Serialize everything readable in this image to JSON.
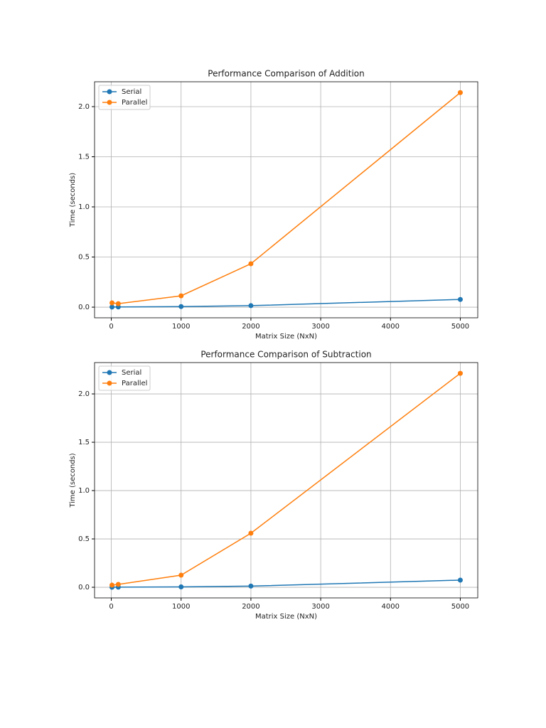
{
  "chart_data": [
    {
      "type": "line",
      "title": "Performance Comparison of Addition",
      "x_label": "Matrix Size (NxN)",
      "y_label": "Time (seconds)",
      "x": [
        10,
        100,
        1000,
        2000,
        5000
      ],
      "series": [
        {
          "name": "Serial",
          "color": "#1f77b4",
          "values": [
            0.001,
            0.002,
            0.006,
            0.015,
            0.077
          ]
        },
        {
          "name": "Parallel",
          "color": "#ff7f0e",
          "values": [
            0.043,
            0.035,
            0.113,
            0.433,
            2.14
          ]
        }
      ],
      "xlim": [
        -240,
        5250
      ],
      "ylim": [
        -0.106,
        2.248
      ],
      "xticks": [
        0,
        1000,
        2000,
        3000,
        4000,
        5000
      ],
      "yticks": [
        {
          "value": 0,
          "label": "0.0"
        },
        {
          "value": 0.5,
          "label": "0.5"
        },
        {
          "value": 1,
          "label": "1.0"
        },
        {
          "value": 1.5,
          "label": "1.5"
        },
        {
          "value": 2,
          "label": "2.0"
        }
      ],
      "grid": true,
      "legend": "upper-left"
    },
    {
      "type": "line",
      "title": "Performance Comparison of Subtraction",
      "x_label": "Matrix Size (NxN)",
      "y_label": "Time (seconds)",
      "x": [
        10,
        100,
        1000,
        2000,
        5000
      ],
      "series": [
        {
          "name": "Serial",
          "color": "#1f77b4",
          "values": [
            0.0005,
            0.001,
            0.004,
            0.012,
            0.074
          ]
        },
        {
          "name": "Parallel",
          "color": "#ff7f0e",
          "values": [
            0.022,
            0.03,
            0.125,
            0.559,
            2.213
          ]
        }
      ],
      "xlim": [
        -240,
        5250
      ],
      "ylim": [
        -0.11,
        2.324
      ],
      "xticks": [
        0,
        1000,
        2000,
        3000,
        4000,
        5000
      ],
      "yticks": [
        {
          "value": 0,
          "label": "0.0"
        },
        {
          "value": 0.5,
          "label": "0.5"
        },
        {
          "value": 1,
          "label": "1.0"
        },
        {
          "value": 1.5,
          "label": "1.5"
        },
        {
          "value": 2,
          "label": "2.0"
        }
      ],
      "grid": true,
      "legend": "upper-left"
    }
  ]
}
